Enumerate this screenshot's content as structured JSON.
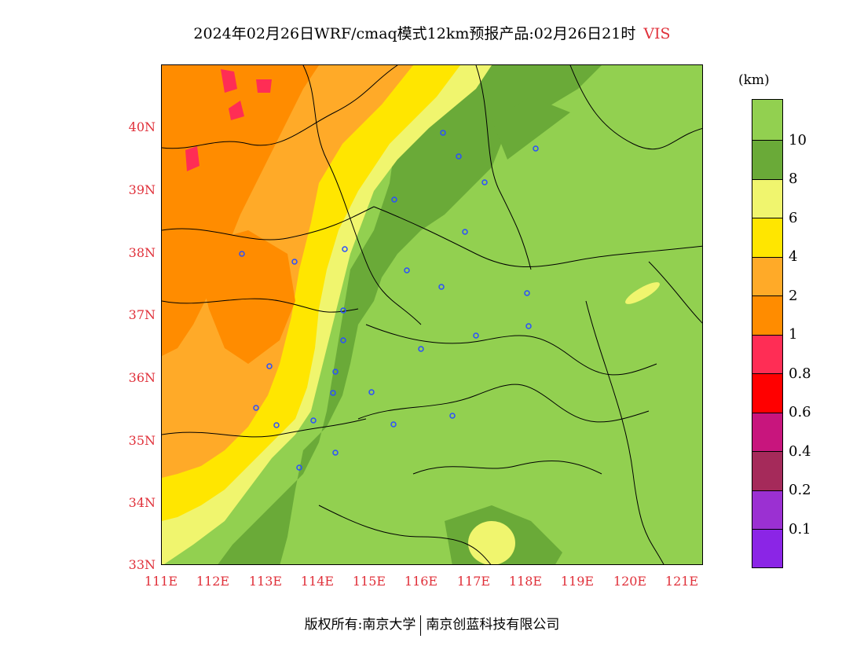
{
  "title": {
    "main": "2024年02月26日WRF/cmaq模式12km预报产品:02月26日21时",
    "variable": "VIS"
  },
  "map": {
    "y_ticks": [
      "40N",
      "39N",
      "38N",
      "37N",
      "36N",
      "35N",
      "34N",
      "33N"
    ],
    "x_ticks": [
      "111E",
      "112E",
      "113E",
      "114E",
      "115E",
      "116E",
      "117E",
      "118E",
      "119E",
      "120E",
      "121E"
    ],
    "lat_range": [
      33,
      41
    ],
    "lon_range": [
      111,
      121.4
    ]
  },
  "legend": {
    "unit": "(km)",
    "labels": [
      "10",
      "8",
      "6",
      "4",
      "2",
      "1",
      "0.8",
      "0.6",
      "0.4",
      "0.2",
      "0.1"
    ],
    "colors": [
      "#92d050",
      "#6aaa38",
      "#f0f56e",
      "#ffe600",
      "#ffaa28",
      "#ff8c00",
      "#ff2d55",
      "#ff0000",
      "#c8157d",
      "#a52a5a",
      "#9b30d2",
      "#8b25e6"
    ]
  },
  "footer": {
    "copyright": "版权所有:南京大学",
    "company": "南京创蓝科技有限公司"
  }
}
